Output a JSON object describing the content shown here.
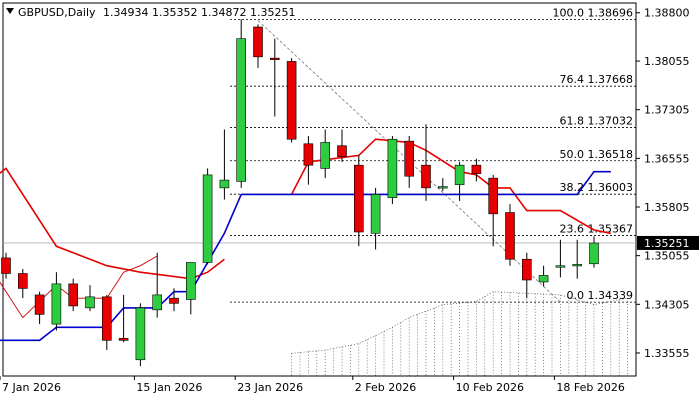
{
  "header": {
    "symbol_label": "GBPUSD,Daily",
    "ohlc_label": "1.34934 1.35352 1.34872 1.35251"
  },
  "price_axis": {
    "ticks": [
      "1.38800",
      "1.38055",
      "1.37305",
      "1.36555",
      "1.35805",
      "1.35055",
      "1.34305",
      "1.33555"
    ],
    "tick_values": [
      1.388,
      1.38055,
      1.37305,
      1.36555,
      1.35805,
      1.35055,
      1.34305,
      1.33555
    ],
    "current_price_label": "1.35251",
    "current_price_value": 1.35251
  },
  "time_axis": {
    "labels": [
      "7 Jan 2026",
      "15 Jan 2026",
      "23 Jan 2026",
      "2 Feb 2026",
      "10 Feb 2026",
      "18 Feb 2026"
    ],
    "label_bar_index": [
      0,
      8,
      14,
      21,
      27,
      33
    ]
  },
  "fibonacci": [
    {
      "label": "100.0 1.38696",
      "value": 1.38696
    },
    {
      "label": "76.4 1.37668",
      "value": 1.37668
    },
    {
      "label": "61.8 1.37032",
      "value": 1.37032
    },
    {
      "label": "50.0 1.36518",
      "value": 1.36518
    },
    {
      "label": "38.2 1.36003",
      "value": 1.36003
    },
    {
      "label": "23.6 1.35367",
      "value": 1.35367
    },
    {
      "label": "0.0 1.34339",
      "value": 1.34339
    }
  ],
  "colors": {
    "bull": "#2ecc40",
    "bear": "#e60000",
    "tenkan": "#e60000",
    "kijun": "#0000cc",
    "chikou": "#cc0000",
    "cloud": "#555555",
    "grid": "#000000",
    "bg": "#ffffff"
  },
  "chart_data": {
    "type": "candlestick",
    "title": "GBPUSD,Daily",
    "ylim": [
      1.332,
      1.3895
    ],
    "candles": [
      {
        "o": 1.3502,
        "h": 1.351,
        "l": 1.347,
        "c": 1.3478
      },
      {
        "o": 1.3478,
        "h": 1.3485,
        "l": 1.344,
        "c": 1.3455
      },
      {
        "o": 1.3445,
        "h": 1.345,
        "l": 1.34,
        "c": 1.3415
      },
      {
        "o": 1.34,
        "h": 1.348,
        "l": 1.339,
        "c": 1.3462
      },
      {
        "o": 1.3462,
        "h": 1.347,
        "l": 1.342,
        "c": 1.3428
      },
      {
        "o": 1.3425,
        "h": 1.346,
        "l": 1.342,
        "c": 1.3442
      },
      {
        "o": 1.3442,
        "h": 1.3445,
        "l": 1.336,
        "c": 1.3375
      },
      {
        "o": 1.3378,
        "h": 1.3445,
        "l": 1.3372,
        "c": 1.3375
      },
      {
        "o": 1.3345,
        "h": 1.3432,
        "l": 1.3335,
        "c": 1.3425
      },
      {
        "o": 1.3422,
        "h": 1.351,
        "l": 1.341,
        "c": 1.3445
      },
      {
        "o": 1.344,
        "h": 1.3455,
        "l": 1.342,
        "c": 1.3432
      },
      {
        "o": 1.3438,
        "h": 1.3495,
        "l": 1.3415,
        "c": 1.3495
      },
      {
        "o": 1.3495,
        "h": 1.364,
        "l": 1.3492,
        "c": 1.363
      },
      {
        "o": 1.361,
        "h": 1.37,
        "l": 1.3592,
        "c": 1.3622
      },
      {
        "o": 1.362,
        "h": 1.387,
        "l": 1.361,
        "c": 1.384
      },
      {
        "o": 1.3858,
        "h": 1.3862,
        "l": 1.3795,
        "c": 1.3812
      },
      {
        "o": 1.381,
        "h": 1.384,
        "l": 1.372,
        "c": 1.3808
      },
      {
        "o": 1.3805,
        "h": 1.381,
        "l": 1.368,
        "c": 1.3685
      },
      {
        "o": 1.3678,
        "h": 1.369,
        "l": 1.3615,
        "c": 1.3645
      },
      {
        "o": 1.364,
        "h": 1.37,
        "l": 1.3625,
        "c": 1.368
      },
      {
        "o": 1.3675,
        "h": 1.37,
        "l": 1.365,
        "c": 1.3658
      },
      {
        "o": 1.3645,
        "h": 1.366,
        "l": 1.352,
        "c": 1.3542
      },
      {
        "o": 1.354,
        "h": 1.361,
        "l": 1.3515,
        "c": 1.36
      },
      {
        "o": 1.3595,
        "h": 1.369,
        "l": 1.3585,
        "c": 1.3685
      },
      {
        "o": 1.3682,
        "h": 1.369,
        "l": 1.361,
        "c": 1.3628
      },
      {
        "o": 1.3645,
        "h": 1.3708,
        "l": 1.359,
        "c": 1.361
      },
      {
        "o": 1.3612,
        "h": 1.3625,
        "l": 1.3605,
        "c": 1.3612
      },
      {
        "o": 1.3615,
        "h": 1.365,
        "l": 1.359,
        "c": 1.3645
      },
      {
        "o": 1.3645,
        "h": 1.3655,
        "l": 1.362,
        "c": 1.3632
      },
      {
        "o": 1.3625,
        "h": 1.363,
        "l": 1.352,
        "c": 1.357
      },
      {
        "o": 1.3572,
        "h": 1.3585,
        "l": 1.349,
        "c": 1.35
      },
      {
        "o": 1.35,
        "h": 1.351,
        "l": 1.344,
        "c": 1.3468
      },
      {
        "o": 1.3465,
        "h": 1.349,
        "l": 1.3458,
        "c": 1.3475
      },
      {
        "o": 1.3488,
        "h": 1.353,
        "l": 1.3472,
        "c": 1.349
      },
      {
        "o": 1.349,
        "h": 1.353,
        "l": 1.347,
        "c": 1.3492
      },
      {
        "o": 1.3493,
        "h": 1.3535,
        "l": 1.3487,
        "c": 1.3525
      }
    ],
    "kijun": [
      {
        "i": -1,
        "v": 1.3375
      },
      {
        "i": 2,
        "v": 1.3375
      },
      {
        "i": 3,
        "v": 1.3395
      },
      {
        "i": 6,
        "v": 1.3395
      },
      {
        "i": 7,
        "v": 1.3425
      },
      {
        "i": 9,
        "v": 1.3425
      },
      {
        "i": 10,
        "v": 1.345
      },
      {
        "i": 11,
        "v": 1.345
      },
      {
        "i": 13,
        "v": 1.354
      },
      {
        "i": 14,
        "v": 1.36
      },
      {
        "i": 16,
        "v": 1.36
      },
      {
        "i": 18,
        "v": 1.36
      },
      {
        "i": 34,
        "v": 1.36
      },
      {
        "i": 35,
        "v": 1.3635
      },
      {
        "i": 36,
        "v": 1.3635
      }
    ],
    "tenkan": [
      {
        "i": -1,
        "v": 1.362
      },
      {
        "i": 0,
        "v": 1.364
      },
      {
        "i": 3,
        "v": 1.352
      },
      {
        "i": 6,
        "v": 1.349
      },
      {
        "i": 8,
        "v": 1.348
      },
      {
        "i": 11,
        "v": 1.347
      },
      {
        "i": 12,
        "v": 1.348
      },
      {
        "i": 13,
        "v": 1.35
      }
    ],
    "tenkan_recent": [
      {
        "i": 17,
        "v": 1.36
      },
      {
        "i": 18,
        "v": 1.365
      },
      {
        "i": 21,
        "v": 1.366
      },
      {
        "i": 22,
        "v": 1.3685
      },
      {
        "i": 24,
        "v": 1.368
      },
      {
        "i": 25,
        "v": 1.3668
      },
      {
        "i": 27,
        "v": 1.3635
      },
      {
        "i": 28,
        "v": 1.363
      },
      {
        "i": 29,
        "v": 1.361
      },
      {
        "i": 30,
        "v": 1.361
      },
      {
        "i": 31,
        "v": 1.3575
      },
      {
        "i": 33,
        "v": 1.3575
      },
      {
        "i": 35,
        "v": 1.3545
      },
      {
        "i": 36,
        "v": 1.354
      }
    ],
    "chikou": [
      {
        "i": -1,
        "v": 1.349
      },
      {
        "i": 1,
        "v": 1.341
      },
      {
        "i": 3,
        "v": 1.346
      },
      {
        "i": 4,
        "v": 1.344
      },
      {
        "i": 6,
        "v": 1.344
      },
      {
        "i": 7,
        "v": 1.348
      },
      {
        "i": 8,
        "v": 1.349
      },
      {
        "i": 9,
        "v": 1.3505
      }
    ],
    "cloud_lower": [
      {
        "i": 17,
        "v": 1.3355
      },
      {
        "i": 19,
        "v": 1.336
      },
      {
        "i": 21,
        "v": 1.337
      },
      {
        "i": 23,
        "v": 1.3395
      },
      {
        "i": 24,
        "v": 1.341
      },
      {
        "i": 26,
        "v": 1.343
      },
      {
        "i": 28,
        "v": 1.3435
      },
      {
        "i": 29,
        "v": 1.345
      },
      {
        "i": 33,
        "v": 1.3445
      },
      {
        "i": 35,
        "v": 1.343
      },
      {
        "i": 36,
        "v": 1.3435
      },
      {
        "i": 37,
        "v": 1.344
      }
    ],
    "cloud_upper_fill": [
      {
        "i": 17,
        "v": 1.3355
      },
      {
        "i": 40,
        "v": 1.3355
      }
    ],
    "trend_line": [
      {
        "i": 15,
        "v": 1.3868
      },
      {
        "i": 33,
        "v": 1.3434
      }
    ]
  }
}
